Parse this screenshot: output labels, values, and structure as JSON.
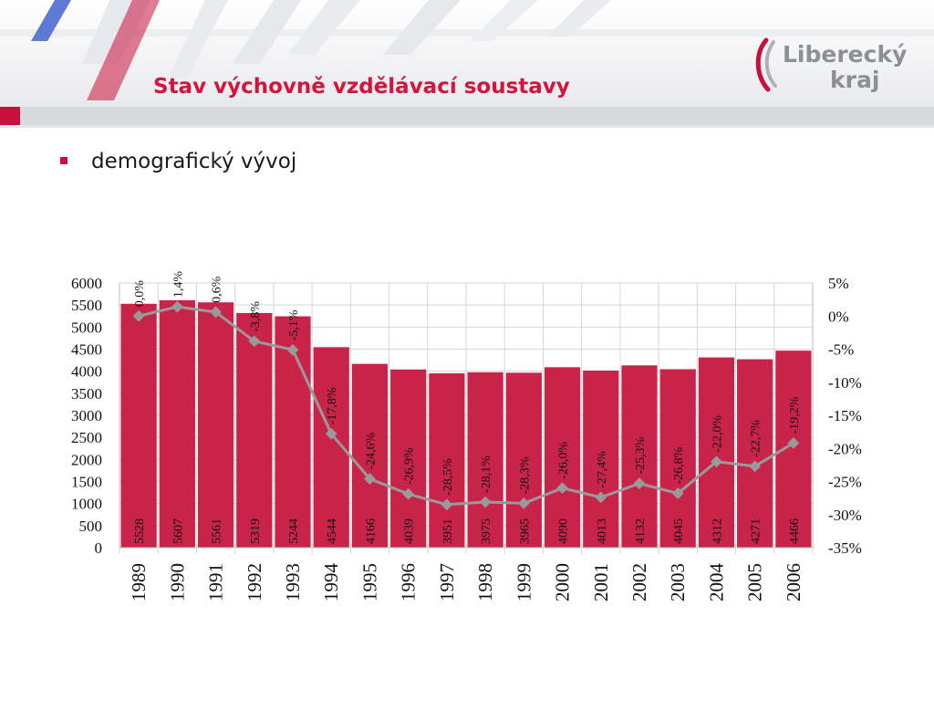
{
  "header": {
    "title": "Stav výchovně vzdělávací soustavy",
    "logo": {
      "line1": "Liberecký",
      "line2": "kraj",
      "icon": "liberecky-kraj-logo-stripes"
    }
  },
  "content": {
    "bullet_text": "demografický vývoj",
    "bullet_icon": "square-bullet-icon"
  },
  "colors": {
    "accent": "#c8103c",
    "bar": "#c8244a",
    "line": "#9a9a9a",
    "title": "#d3143d"
  },
  "chart_data": {
    "type": "bar+line",
    "categories": [
      "1989",
      "1990",
      "1991",
      "1992",
      "1993",
      "1994",
      "1995",
      "1996",
      "1997",
      "1998",
      "1999",
      "2000",
      "2001",
      "2002",
      "2003",
      "2004",
      "2005",
      "2006"
    ],
    "series": [
      {
        "values": [
          5528,
          5607,
          5561,
          5319,
          5244,
          4544,
          4166,
          4039,
          3951,
          3975,
          3965,
          4090,
          4013,
          4132,
          4045,
          4312,
          4271,
          4466
        ],
        "labels": [
          "5528",
          "5607",
          "5561",
          "5319",
          "5244",
          "4544",
          "4166",
          "4039",
          "3951",
          "3975",
          "3965",
          "4090",
          "4013",
          "4132",
          "4045",
          "4312",
          "4271",
          "4466"
        ],
        "axis": "left",
        "type": "bar"
      },
      {
        "values": [
          0.0,
          1.4,
          0.6,
          -3.8,
          -5.1,
          -17.8,
          -24.6,
          -26.9,
          -28.5,
          -28.1,
          -28.3,
          -26.0,
          -27.4,
          -25.3,
          -26.8,
          -22.0,
          -22.7,
          -19.2
        ],
        "labels": [
          "0,0%",
          "1,4%",
          "0,6%",
          "-3,8%",
          "-5,1%",
          "-17,8%",
          "-24,6%",
          "-26,9%",
          "-28,5%",
          "-28,1%",
          "-28,3%",
          "-26,0%",
          "-27,4%",
          "-25,3%",
          "-26,8%",
          "-22,0%",
          "-22,7%",
          "-19,2%"
        ],
        "axis": "right",
        "type": "line"
      }
    ],
    "y_left": {
      "lim": [
        0,
        6000
      ],
      "ticks": [
        "0",
        "500",
        "1000",
        "1500",
        "2000",
        "2500",
        "3000",
        "3500",
        "4000",
        "4500",
        "5000",
        "5500",
        "6000"
      ]
    },
    "y_right": {
      "lim": [
        -35,
        5
      ],
      "ticks": [
        "-35%",
        "-30%",
        "-25%",
        "-20%",
        "-15%",
        "-10%",
        "-5%",
        "0%",
        "5%"
      ]
    },
    "grid": true
  }
}
